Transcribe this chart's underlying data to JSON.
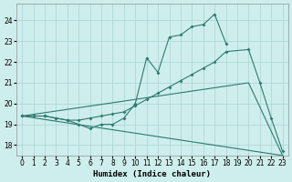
{
  "xlabel": "Humidex (Indice chaleur)",
  "line1_x": [
    0,
    1,
    2,
    3,
    4,
    5,
    6,
    7,
    8,
    9,
    10,
    11,
    12,
    13,
    14,
    15,
    16,
    17,
    18
  ],
  "line1_y": [
    19.4,
    19.4,
    19.4,
    19.3,
    19.2,
    19.0,
    18.8,
    19.0,
    19.0,
    19.3,
    20.0,
    22.2,
    21.5,
    23.2,
    23.3,
    23.7,
    23.8,
    24.3,
    22.9
  ],
  "line2_x": [
    0,
    1,
    2,
    3,
    4,
    5,
    6,
    7,
    8,
    9,
    10,
    11,
    12,
    13,
    14,
    15,
    16,
    17,
    18,
    20,
    21,
    22,
    23
  ],
  "line2_y": [
    19.4,
    19.4,
    19.4,
    19.3,
    19.2,
    19.2,
    19.3,
    19.4,
    19.5,
    19.6,
    19.9,
    20.2,
    20.5,
    20.8,
    21.1,
    21.4,
    21.7,
    22.0,
    22.5,
    22.6,
    21.0,
    19.3,
    17.7
  ],
  "line3_x": [
    0,
    20,
    23
  ],
  "line3_y": [
    19.4,
    21.0,
    17.5
  ],
  "line4_x": [
    0,
    23
  ],
  "line4_y": [
    19.4,
    17.5
  ],
  "color": "#2d7a6e",
  "bg_color": "#ceeeed",
  "grid_color": "#a8d4d2",
  "ylim": [
    17.5,
    24.8
  ],
  "xlim": [
    -0.5,
    23.5
  ],
  "yticks": [
    18,
    19,
    20,
    21,
    22,
    23,
    24
  ],
  "xticks": [
    0,
    1,
    2,
    3,
    4,
    5,
    6,
    7,
    8,
    9,
    10,
    11,
    12,
    13,
    14,
    15,
    16,
    17,
    18,
    19,
    20,
    21,
    22,
    23
  ],
  "tick_fontsize": 5.5,
  "xlabel_fontsize": 6.5
}
